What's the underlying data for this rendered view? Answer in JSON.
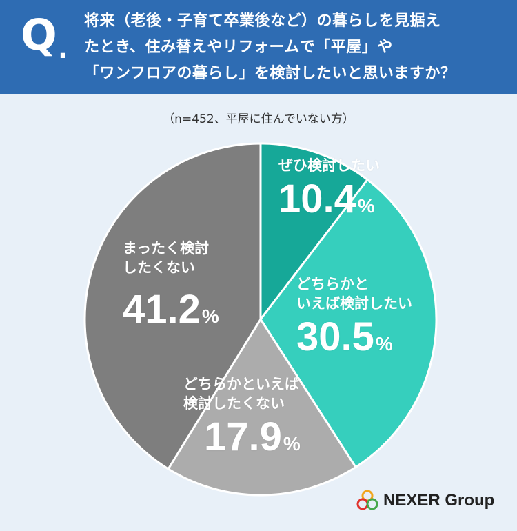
{
  "header": {
    "q_mark": "Q",
    "q_dot": ".",
    "question_lines": [
      "将来（老後・子育て卒業後など）の暮らしを見据え",
      "たとき、住み替えやリフォームで「平屋」や",
      "「ワンフロアの暮らし」を検討したいと思いますか？"
    ]
  },
  "sample_note": "（n=452、平屋に住んでいない方）",
  "logo": {
    "text": "NEXER Group",
    "icon": "nexer-rings-icon"
  },
  "chart_data": {
    "type": "pie",
    "start_angle": "12 o'clock, clockwise",
    "slices": [
      {
        "label_lines": [
          "ぜひ検討したい"
        ],
        "value": 10.4,
        "unit": "%",
        "color": "#16a898"
      },
      {
        "label_lines": [
          "どちらかと",
          "いえば検討したい"
        ],
        "value": 30.5,
        "unit": "%",
        "color": "#36cfbd"
      },
      {
        "label_lines": [
          "どちらかといえば",
          "検討したくない"
        ],
        "value": 17.9,
        "unit": "%",
        "color": "#acacac"
      },
      {
        "label_lines": [
          "まったく検討",
          "したくない"
        ],
        "value": 41.2,
        "unit": "%",
        "color": "#7e7e7e"
      }
    ]
  }
}
